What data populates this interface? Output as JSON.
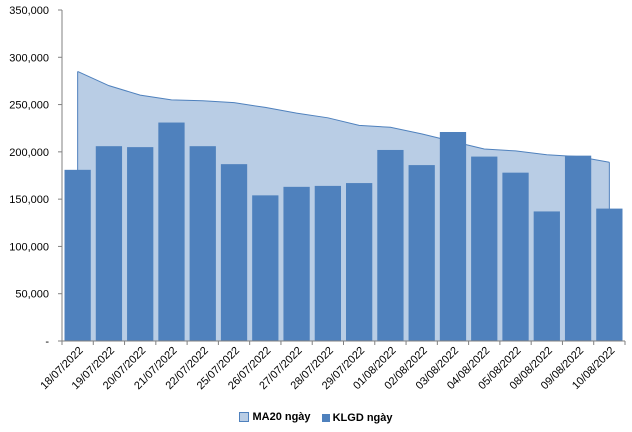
{
  "chart_data": {
    "type": "bar",
    "categories": [
      "18/07/2022",
      "19/07/2022",
      "20/07/2022",
      "21/07/2022",
      "22/07/2022",
      "25/07/2022",
      "26/07/2022",
      "27/07/2022",
      "28/07/2022",
      "29/07/2022",
      "01/08/2022",
      "02/08/2022",
      "03/08/2022",
      "04/08/2022",
      "05/08/2022",
      "08/08/2022",
      "09/08/2022",
      "10/08/2022"
    ],
    "series": [
      {
        "name": "MA20 ngày",
        "kind": "area",
        "color": "#b9cde5",
        "edge_color": "#4f81bd",
        "values": [
          285000,
          270000,
          260000,
          255000,
          254000,
          252000,
          247000,
          241000,
          236000,
          228000,
          226000,
          219000,
          211000,
          203000,
          201000,
          197000,
          195000,
          189000
        ]
      },
      {
        "name": "KLGD ngày",
        "kind": "bar",
        "color": "#4f81bd",
        "values": [
          181000,
          206000,
          205000,
          231000,
          206000,
          187000,
          154000,
          163000,
          164000,
          167000,
          202000,
          186000,
          221000,
          195000,
          178000,
          137000,
          196000,
          140000
        ]
      }
    ],
    "ylim": [
      0,
      350000
    ],
    "yticks": [
      {
        "value": 0,
        "label": "-"
      },
      {
        "value": 50000,
        "label": "50,000"
      },
      {
        "value": 100000,
        "label": "100,000"
      },
      {
        "value": 150000,
        "label": "150,000"
      },
      {
        "value": 200000,
        "label": "200,000"
      },
      {
        "value": 250000,
        "label": "250,000"
      },
      {
        "value": 300000,
        "label": "300,000"
      },
      {
        "value": 350000,
        "label": "350,000"
      }
    ],
    "grid": false,
    "legend_position": "bottom"
  }
}
